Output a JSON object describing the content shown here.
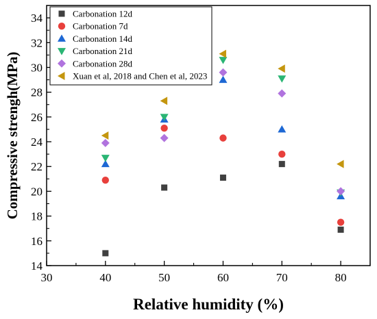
{
  "chart_data": {
    "type": "scatter",
    "xlabel": "Relative humidity (%)",
    "ylabel": "Compressive strengh(MPa)",
    "xlim": [
      30,
      85
    ],
    "ylim": [
      14,
      35
    ],
    "x_ticks": [
      "30",
      "40",
      "50",
      "60",
      "70",
      "80"
    ],
    "y_ticks": [
      "14",
      "16",
      "18",
      "20",
      "22",
      "24",
      "26",
      "28",
      "30",
      "32",
      "34"
    ],
    "grid": false,
    "legend_position": "top-left",
    "series": [
      {
        "name": "Carbonation 12d",
        "marker": "square",
        "color": "#404040",
        "x": [
          40,
          50,
          60,
          70,
          80
        ],
        "y": [
          15.0,
          20.3,
          21.1,
          22.2,
          16.9
        ]
      },
      {
        "name": "Carbonation 7d",
        "marker": "circle",
        "color": "#e8403c",
        "x": [
          40,
          50,
          60,
          70,
          80
        ],
        "y": [
          20.9,
          25.1,
          24.3,
          23.0,
          17.5
        ]
      },
      {
        "name": "Carbonation 14d",
        "marker": "triangle-up",
        "color": "#1e68d4",
        "x": [
          40,
          50,
          60,
          70,
          80
        ],
        "y": [
          22.2,
          25.8,
          29.0,
          25.0,
          19.6
        ]
      },
      {
        "name": "Carbonation 21d",
        "marker": "triangle-down",
        "color": "#2ab574",
        "x": [
          40,
          50,
          60,
          70,
          80
        ],
        "y": [
          22.7,
          26.0,
          30.6,
          29.1,
          19.9
        ]
      },
      {
        "name": "Carbonation 28d",
        "marker": "diamond",
        "color": "#b073de",
        "x": [
          40,
          50,
          60,
          70,
          80
        ],
        "y": [
          23.9,
          24.3,
          29.6,
          27.9,
          20.0
        ]
      },
      {
        "name": "Xuan et al, 2018 and Chen et al, 2023",
        "marker": "triangle-left",
        "color": "#c4960f",
        "x": [
          40,
          50,
          60,
          70,
          80
        ],
        "y": [
          24.5,
          27.3,
          31.1,
          29.9,
          22.2
        ]
      }
    ]
  }
}
